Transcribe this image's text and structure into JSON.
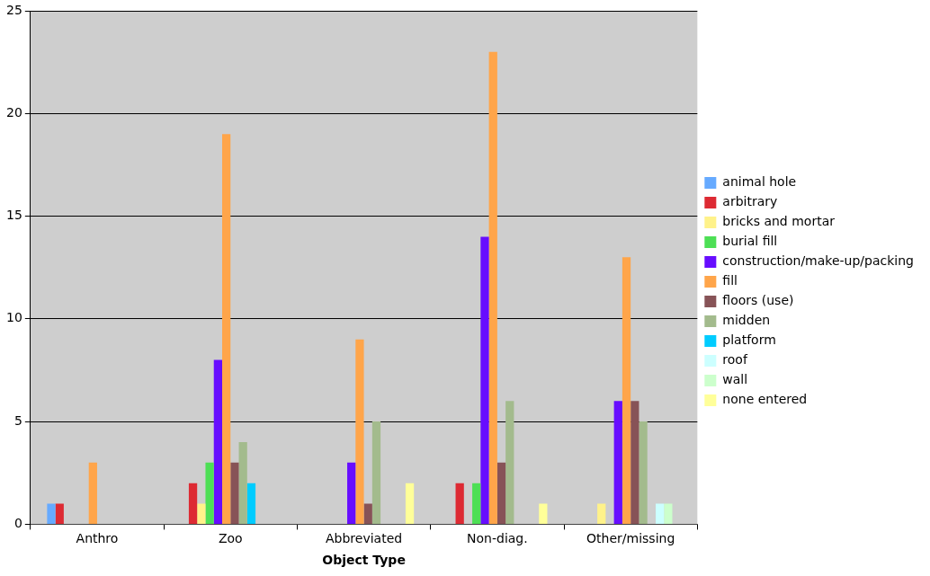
{
  "chart_data": {
    "type": "bar",
    "xlabel": "Object Type",
    "categories": [
      "Anthro",
      "Zoo",
      "Abbreviated",
      "Non-diag.",
      "Other/missing"
    ],
    "series": [
      {
        "name": "animal hole",
        "color": "#66aaff",
        "values": [
          1,
          null,
          null,
          null,
          null
        ]
      },
      {
        "name": "arbitrary",
        "color": "#dd2a33",
        "values": [
          1,
          2,
          null,
          2,
          null
        ]
      },
      {
        "name": "bricks and mortar",
        "color": "#fff28a",
        "values": [
          null,
          1,
          null,
          null,
          1
        ]
      },
      {
        "name": "burial fill",
        "color": "#4ddf55",
        "values": [
          null,
          3,
          null,
          2,
          null
        ]
      },
      {
        "name": "construction/make-up/packing",
        "color": "#670dff",
        "values": [
          null,
          8,
          3,
          14,
          6
        ]
      },
      {
        "name": "fill",
        "color": "#ffa54a",
        "values": [
          3,
          19,
          9,
          23,
          13
        ]
      },
      {
        "name": "floors (use)",
        "color": "#875357",
        "values": [
          null,
          3,
          1,
          3,
          6
        ]
      },
      {
        "name": "midden",
        "color": "#a3bb8d",
        "values": [
          null,
          4,
          5,
          6,
          5
        ]
      },
      {
        "name": "platform",
        "color": "#00ccff",
        "values": [
          null,
          2,
          null,
          null,
          null
        ]
      },
      {
        "name": "roof",
        "color": "#ccffff",
        "values": [
          null,
          null,
          null,
          null,
          1
        ]
      },
      {
        "name": "wall",
        "color": "#ccffcc",
        "values": [
          null,
          null,
          null,
          null,
          1
        ]
      },
      {
        "name": "none entered",
        "color": "#ffff99",
        "values": [
          null,
          null,
          2,
          1,
          null
        ]
      }
    ],
    "ylim": [
      0,
      25
    ],
    "yticks": [
      0,
      5,
      10,
      15,
      20,
      25
    ],
    "grid": "y",
    "legend": "right"
  }
}
